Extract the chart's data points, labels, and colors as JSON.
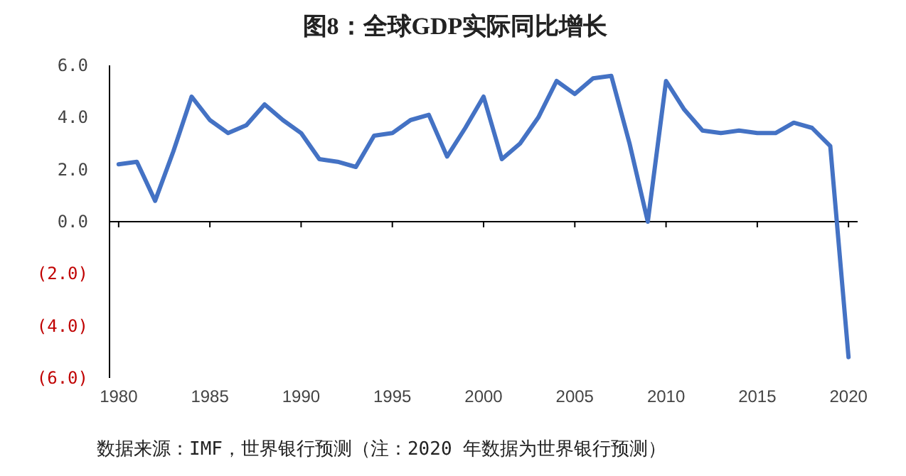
{
  "chart_data": {
    "type": "line",
    "title": "图8：全球GDP实际同比增长",
    "annotations": [
      "数据来源：IMF，世界银行预测（注：2020 年数据为世界银行预测）"
    ],
    "x": [
      1980,
      1981,
      1982,
      1983,
      1984,
      1985,
      1986,
      1987,
      1988,
      1989,
      1990,
      1991,
      1992,
      1993,
      1994,
      1995,
      1996,
      1997,
      1998,
      1999,
      2000,
      2001,
      2002,
      2003,
      2004,
      2005,
      2006,
      2007,
      2008,
      2009,
      2010,
      2011,
      2012,
      2013,
      2014,
      2015,
      2016,
      2017,
      2018,
      2019,
      2020
    ],
    "series": [
      {
        "color": "#4472c4",
        "values": [
          2.2,
          2.3,
          0.8,
          2.7,
          4.8,
          3.9,
          3.4,
          3.7,
          4.5,
          3.9,
          3.4,
          2.4,
          2.3,
          2.1,
          3.3,
          3.4,
          3.9,
          4.1,
          2.5,
          3.6,
          4.8,
          2.4,
          3.0,
          4.0,
          5.4,
          4.9,
          5.5,
          5.6,
          3.0,
          0.0,
          5.4,
          4.3,
          3.5,
          3.4,
          3.5,
          3.4,
          3.4,
          3.8,
          3.6,
          2.9,
          -5.2
        ]
      }
    ],
    "xlim": [
      1979.5,
      2020.5
    ],
    "xticks": [
      1980,
      1985,
      1990,
      1995,
      2000,
      2005,
      2010,
      2015,
      2020
    ],
    "ylim": [
      -6,
      6
    ],
    "yticks": [
      {
        "value": 6,
        "label": "6.0"
      },
      {
        "value": 4,
        "label": "4.0"
      },
      {
        "value": 2,
        "label": "2.0"
      },
      {
        "value": 0,
        "label": "0.0"
      },
      {
        "value": -2,
        "label": "(2.0)"
      },
      {
        "value": -4,
        "label": "(4.0)"
      },
      {
        "value": -6,
        "label": "(6.0)"
      }
    ]
  }
}
